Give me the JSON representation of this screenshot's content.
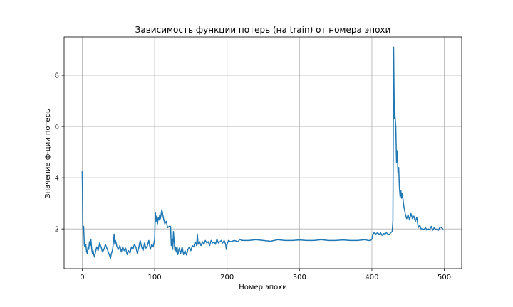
{
  "chart_data": {
    "type": "line",
    "title": "Зависимость функции потерь (на train) от номера эпохи",
    "xlabel": "Номер эпохи",
    "ylabel": "Значение ф-ции потерь",
    "xlim": [
      -25,
      524
    ],
    "ylim": [
      0.45,
      9.5
    ],
    "xticks": [
      0,
      100,
      200,
      300,
      400,
      500
    ],
    "yticks": [
      2,
      4,
      6,
      8
    ],
    "xtick_labels": [
      "0",
      "100",
      "200",
      "300",
      "400",
      "500"
    ],
    "ytick_labels": [
      "2",
      "4",
      "6",
      "8"
    ],
    "grid": true,
    "series": [
      {
        "color": "#1f77b4",
        "points": [
          [
            0,
            4.25
          ],
          [
            1,
            2.0
          ],
          [
            2,
            2.1
          ],
          [
            3,
            1.35
          ],
          [
            4,
            1.3
          ],
          [
            5,
            1.4
          ],
          [
            6,
            1.1
          ],
          [
            7,
            1.05
          ],
          [
            8,
            1.3
          ],
          [
            9,
            1.2
          ],
          [
            10,
            1.5
          ],
          [
            11,
            1.35
          ],
          [
            12,
            1.6
          ],
          [
            13,
            1.25
          ],
          [
            14,
            1.05
          ],
          [
            15,
            1.15
          ],
          [
            16,
            1.0
          ],
          [
            17,
            0.9
          ],
          [
            18,
            1.05
          ],
          [
            20,
            1.3
          ],
          [
            22,
            1.15
          ],
          [
            24,
            1.45
          ],
          [
            26,
            1.3
          ],
          [
            28,
            1.1
          ],
          [
            30,
            1.2
          ],
          [
            32,
            1.4
          ],
          [
            34,
            1.25
          ],
          [
            36,
            1.1
          ],
          [
            38,
            0.95
          ],
          [
            39,
            0.85
          ],
          [
            40,
            1.0
          ],
          [
            42,
            1.2
          ],
          [
            43,
            1.45
          ],
          [
            44,
            1.8
          ],
          [
            45,
            1.4
          ],
          [
            46,
            1.55
          ],
          [
            48,
            1.3
          ],
          [
            50,
            1.2
          ],
          [
            52,
            1.35
          ],
          [
            54,
            1.1
          ],
          [
            56,
            1.3
          ],
          [
            58,
            1.15
          ],
          [
            60,
            1.25
          ],
          [
            62,
            1.0
          ],
          [
            64,
            1.15
          ],
          [
            66,
            1.05
          ],
          [
            68,
            1.3
          ],
          [
            70,
            1.2
          ],
          [
            72,
            1.4
          ],
          [
            74,
            1.3
          ],
          [
            76,
            1.05
          ],
          [
            78,
            1.25
          ],
          [
            80,
            1.55
          ],
          [
            82,
            1.3
          ],
          [
            84,
            1.15
          ],
          [
            86,
            1.45
          ],
          [
            88,
            1.25
          ],
          [
            90,
            1.35
          ],
          [
            92,
            1.55
          ],
          [
            94,
            1.2
          ],
          [
            96,
            1.4
          ],
          [
            98,
            1.3
          ],
          [
            100,
            1.6
          ],
          [
            101,
            2.65
          ],
          [
            102,
            2.3
          ],
          [
            103,
            2.5
          ],
          [
            104,
            2.2
          ],
          [
            105,
            2.45
          ],
          [
            106,
            2.35
          ],
          [
            107,
            2.55
          ],
          [
            108,
            2.4
          ],
          [
            110,
            2.75
          ],
          [
            112,
            2.45
          ],
          [
            114,
            2.2
          ],
          [
            116,
            2.3
          ],
          [
            118,
            2.05
          ],
          [
            120,
            2.1
          ],
          [
            122,
            2.1
          ],
          [
            123,
            1.35
          ],
          [
            124,
            1.6
          ],
          [
            125,
            1.2
          ],
          [
            126,
            1.9
          ],
          [
            127,
            1.5
          ],
          [
            128,
            1.15
          ],
          [
            129,
            1.3
          ],
          [
            130,
            1.1
          ],
          [
            131,
            1.3
          ],
          [
            132,
            1.0
          ],
          [
            134,
            1.25
          ],
          [
            136,
            1.05
          ],
          [
            138,
            1.3
          ],
          [
            140,
            1.0
          ],
          [
            142,
            1.15
          ],
          [
            144,
            0.98
          ],
          [
            146,
            1.2
          ],
          [
            148,
            1.3
          ],
          [
            150,
            1.15
          ],
          [
            152,
            1.35
          ],
          [
            154,
            1.3
          ],
          [
            156,
            1.5
          ],
          [
            158,
            1.35
          ],
          [
            159,
            1.8
          ],
          [
            160,
            1.4
          ],
          [
            162,
            1.5
          ],
          [
            164,
            1.35
          ],
          [
            166,
            1.5
          ],
          [
            168,
            1.4
          ],
          [
            170,
            1.55
          ],
          [
            172,
            1.45
          ],
          [
            174,
            1.5
          ],
          [
            176,
            1.35
          ],
          [
            178,
            1.55
          ],
          [
            180,
            1.45
          ],
          [
            182,
            1.5
          ],
          [
            184,
            1.4
          ],
          [
            186,
            1.6
          ],
          [
            188,
            1.45
          ],
          [
            190,
            1.5
          ],
          [
            192,
            1.55
          ],
          [
            194,
            1.45
          ],
          [
            196,
            1.55
          ],
          [
            198,
            1.4
          ],
          [
            199,
            1.2
          ],
          [
            200,
            1.4
          ],
          [
            202,
            1.55
          ],
          [
            205,
            1.5
          ],
          [
            210,
            1.55
          ],
          [
            215,
            1.5
          ],
          [
            218,
            1.6
          ],
          [
            220,
            1.55
          ],
          [
            230,
            1.55
          ],
          [
            240,
            1.58
          ],
          [
            250,
            1.55
          ],
          [
            260,
            1.52
          ],
          [
            270,
            1.58
          ],
          [
            280,
            1.55
          ],
          [
            290,
            1.55
          ],
          [
            300,
            1.57
          ],
          [
            310,
            1.55
          ],
          [
            320,
            1.55
          ],
          [
            330,
            1.58
          ],
          [
            340,
            1.55
          ],
          [
            350,
            1.55
          ],
          [
            360,
            1.57
          ],
          [
            370,
            1.55
          ],
          [
            380,
            1.55
          ],
          [
            390,
            1.58
          ],
          [
            395,
            1.55
          ],
          [
            398,
            1.55
          ],
          [
            400,
            1.6
          ],
          [
            401,
            1.78
          ],
          [
            403,
            1.85
          ],
          [
            405,
            1.8
          ],
          [
            408,
            1.85
          ],
          [
            410,
            1.78
          ],
          [
            412,
            1.85
          ],
          [
            414,
            1.75
          ],
          [
            416,
            1.82
          ],
          [
            418,
            1.8
          ],
          [
            420,
            1.85
          ],
          [
            422,
            1.8
          ],
          [
            424,
            1.78
          ],
          [
            426,
            1.85
          ],
          [
            428,
            1.9
          ],
          [
            429,
            2.3
          ],
          [
            430,
            9.1
          ],
          [
            431,
            6.3
          ],
          [
            432,
            6.4
          ],
          [
            433,
            6.0
          ],
          [
            434,
            4.6
          ],
          [
            435,
            5.05
          ],
          [
            436,
            4.2
          ],
          [
            437,
            4.4
          ],
          [
            438,
            3.6
          ],
          [
            439,
            3.25
          ],
          [
            440,
            3.5
          ],
          [
            441,
            3.2
          ],
          [
            442,
            3.4
          ],
          [
            444,
            2.9
          ],
          [
            446,
            2.6
          ],
          [
            448,
            2.4
          ],
          [
            450,
            2.55
          ],
          [
            452,
            2.35
          ],
          [
            454,
            2.6
          ],
          [
            456,
            2.4
          ],
          [
            458,
            2.5
          ],
          [
            460,
            2.3
          ],
          [
            462,
            2.45
          ],
          [
            464,
            2.05
          ],
          [
            466,
            2.15
          ],
          [
            468,
            2.0
          ],
          [
            470,
            2.0
          ],
          [
            472,
            1.98
          ],
          [
            474,
            2.05
          ],
          [
            476,
            1.95
          ],
          [
            478,
            2.0
          ],
          [
            480,
            1.98
          ],
          [
            482,
            2.1
          ],
          [
            484,
            1.95
          ],
          [
            486,
            2.05
          ],
          [
            488,
            1.98
          ],
          [
            490,
            2.0
          ],
          [
            492,
            1.95
          ],
          [
            494,
            2.08
          ],
          [
            496,
            2.05
          ],
          [
            498,
            2.0
          ]
        ]
      }
    ]
  }
}
